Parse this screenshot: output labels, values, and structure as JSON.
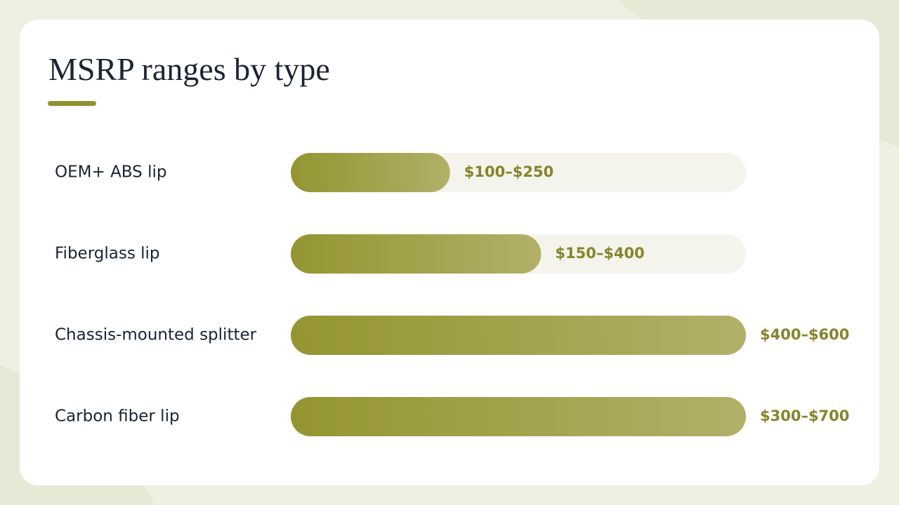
{
  "chart_data": {
    "type": "bar",
    "title": "MSRP ranges by type",
    "categories": [
      "OEM+ ABS lip",
      "Fiberglass lip",
      "Chassis-mounted splitter",
      "Carbon fiber lip"
    ],
    "values": [
      35,
      55,
      100,
      100
    ],
    "range_labels": [
      "$100–$250",
      "$150–$400",
      "$400–$600",
      "$300–$700"
    ],
    "xlim": [
      0,
      100
    ],
    "color": "#959532"
  }
}
